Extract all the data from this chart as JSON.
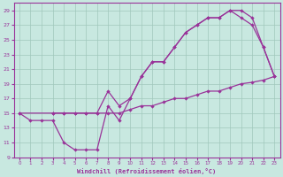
{
  "xlabel": "Windchill (Refroidissement éolien,°C)",
  "xlim": [
    -0.5,
    23.5
  ],
  "ylim": [
    9,
    30
  ],
  "xticks": [
    0,
    1,
    2,
    3,
    4,
    5,
    6,
    7,
    8,
    9,
    10,
    11,
    12,
    13,
    14,
    15,
    16,
    17,
    18,
    19,
    20,
    21,
    22,
    23
  ],
  "yticks": [
    9,
    11,
    13,
    15,
    17,
    19,
    21,
    23,
    25,
    27,
    29
  ],
  "bg_color": "#c8e8e0",
  "grid_color": "#a0c8bc",
  "line_color": "#993399",
  "line1_x": [
    0,
    1,
    2,
    3,
    4,
    5,
    6,
    7,
    8,
    9,
    10,
    11,
    12,
    13,
    14,
    15,
    16,
    17,
    18,
    19,
    20,
    21,
    22,
    23
  ],
  "line1_y": [
    15,
    14,
    14,
    14,
    11,
    10,
    10,
    10,
    16,
    14,
    17,
    20,
    22,
    22,
    24,
    26,
    27,
    28,
    28,
    29,
    28,
    27,
    24,
    20
  ],
  "line2_x": [
    3,
    4,
    5,
    6,
    7,
    8,
    9,
    10,
    11,
    12,
    13,
    14,
    15,
    16,
    17,
    18,
    19,
    20,
    21,
    22,
    23
  ],
  "line2_y": [
    15,
    15,
    15,
    15,
    15,
    18,
    16,
    17,
    20,
    22,
    22,
    24,
    26,
    27,
    28,
    28,
    29,
    29,
    28,
    24,
    20
  ],
  "line3_x": [
    0,
    3,
    4,
    5,
    6,
    7,
    8,
    9,
    10,
    11,
    12,
    13,
    14,
    15,
    16,
    17,
    18,
    19,
    20,
    21,
    22,
    23
  ],
  "line3_y": [
    15,
    15,
    15,
    15,
    15,
    15,
    15,
    15,
    15.5,
    16,
    16,
    16.5,
    17,
    17,
    17.5,
    18,
    18,
    18.5,
    19,
    19.2,
    19.5,
    20
  ]
}
